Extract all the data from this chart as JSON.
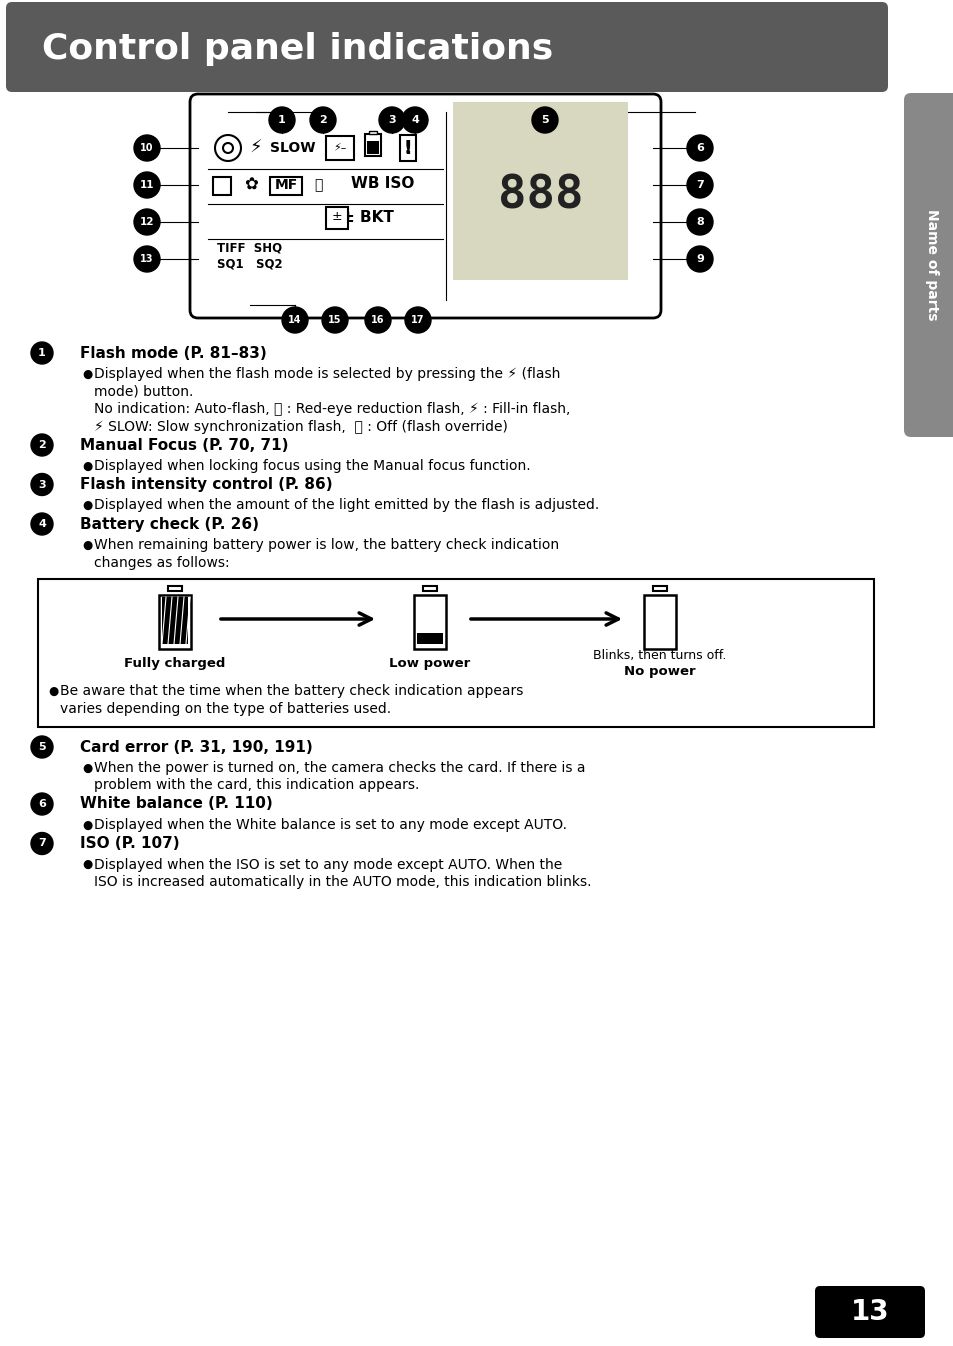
{
  "title": "Control panel indications",
  "title_bg": "#5a5a5a",
  "title_color": "#ffffff",
  "page_bg": "#ffffff",
  "sidebar_bg": "#888888",
  "sidebar_text": "Name of parts",
  "page_number": "13",
  "sections": [
    {
      "number": "1",
      "heading": "Flash mode (P. 81–83)",
      "lines": [
        {
          "type": "bullet",
          "text": "Displayed when the flash mode is selected by pressing the ⚡ (flash"
        },
        {
          "type": "cont",
          "text": "mode) button."
        },
        {
          "type": "plain",
          "text": "No indication: Auto-flash, ⓞ : Red-eye reduction flash, ⚡ : Fill-in flash,"
        },
        {
          "type": "plain",
          "text": "⚡ SLOW: Slow synchronization flash,  ⓢ : Off (flash override)"
        }
      ]
    },
    {
      "number": "2",
      "heading": "Manual Focus (P. 70, 71)",
      "lines": [
        {
          "type": "bullet",
          "text": "Displayed when locking focus using the Manual focus function."
        }
      ]
    },
    {
      "number": "3",
      "heading": "Flash intensity control (P. 86)",
      "lines": [
        {
          "type": "bullet",
          "text": "Displayed when the amount of the light emitted by the flash is adjusted."
        }
      ]
    },
    {
      "number": "4",
      "heading": "Battery check (P. 26)",
      "lines": [
        {
          "type": "bullet",
          "text": "When remaining battery power is low, the battery check indication"
        },
        {
          "type": "cont",
          "text": "changes as follows:"
        }
      ]
    },
    {
      "number": "5",
      "heading": "Card error (P. 31, 190, 191)",
      "lines": [
        {
          "type": "bullet",
          "text": "When the power is turned on, the camera checks the card. If there is a"
        },
        {
          "type": "cont",
          "text": "problem with the card, this indication appears."
        }
      ]
    },
    {
      "number": "6",
      "heading": "White balance (P. 110)",
      "lines": [
        {
          "type": "bullet",
          "text": "Displayed when the White balance is set to any mode except AUTO."
        }
      ]
    },
    {
      "number": "7",
      "heading": "ISO (P. 107)",
      "lines": [
        {
          "type": "bullet",
          "text": "Displayed when the ISO is set to any mode except AUTO. When the"
        },
        {
          "type": "cont",
          "text": "ISO is increased automatically in the AUTO mode, this indication blinks."
        }
      ]
    }
  ],
  "battery_box": {
    "fully_charged_label": "Fully charged",
    "low_power_label": "Low power",
    "no_power_label1": "Blinks, then turns off.",
    "no_power_label2": "No power",
    "note_line1": "Be aware that the time when the battery check indication appears",
    "note_line2": "varies depending on the type of batteries used."
  }
}
